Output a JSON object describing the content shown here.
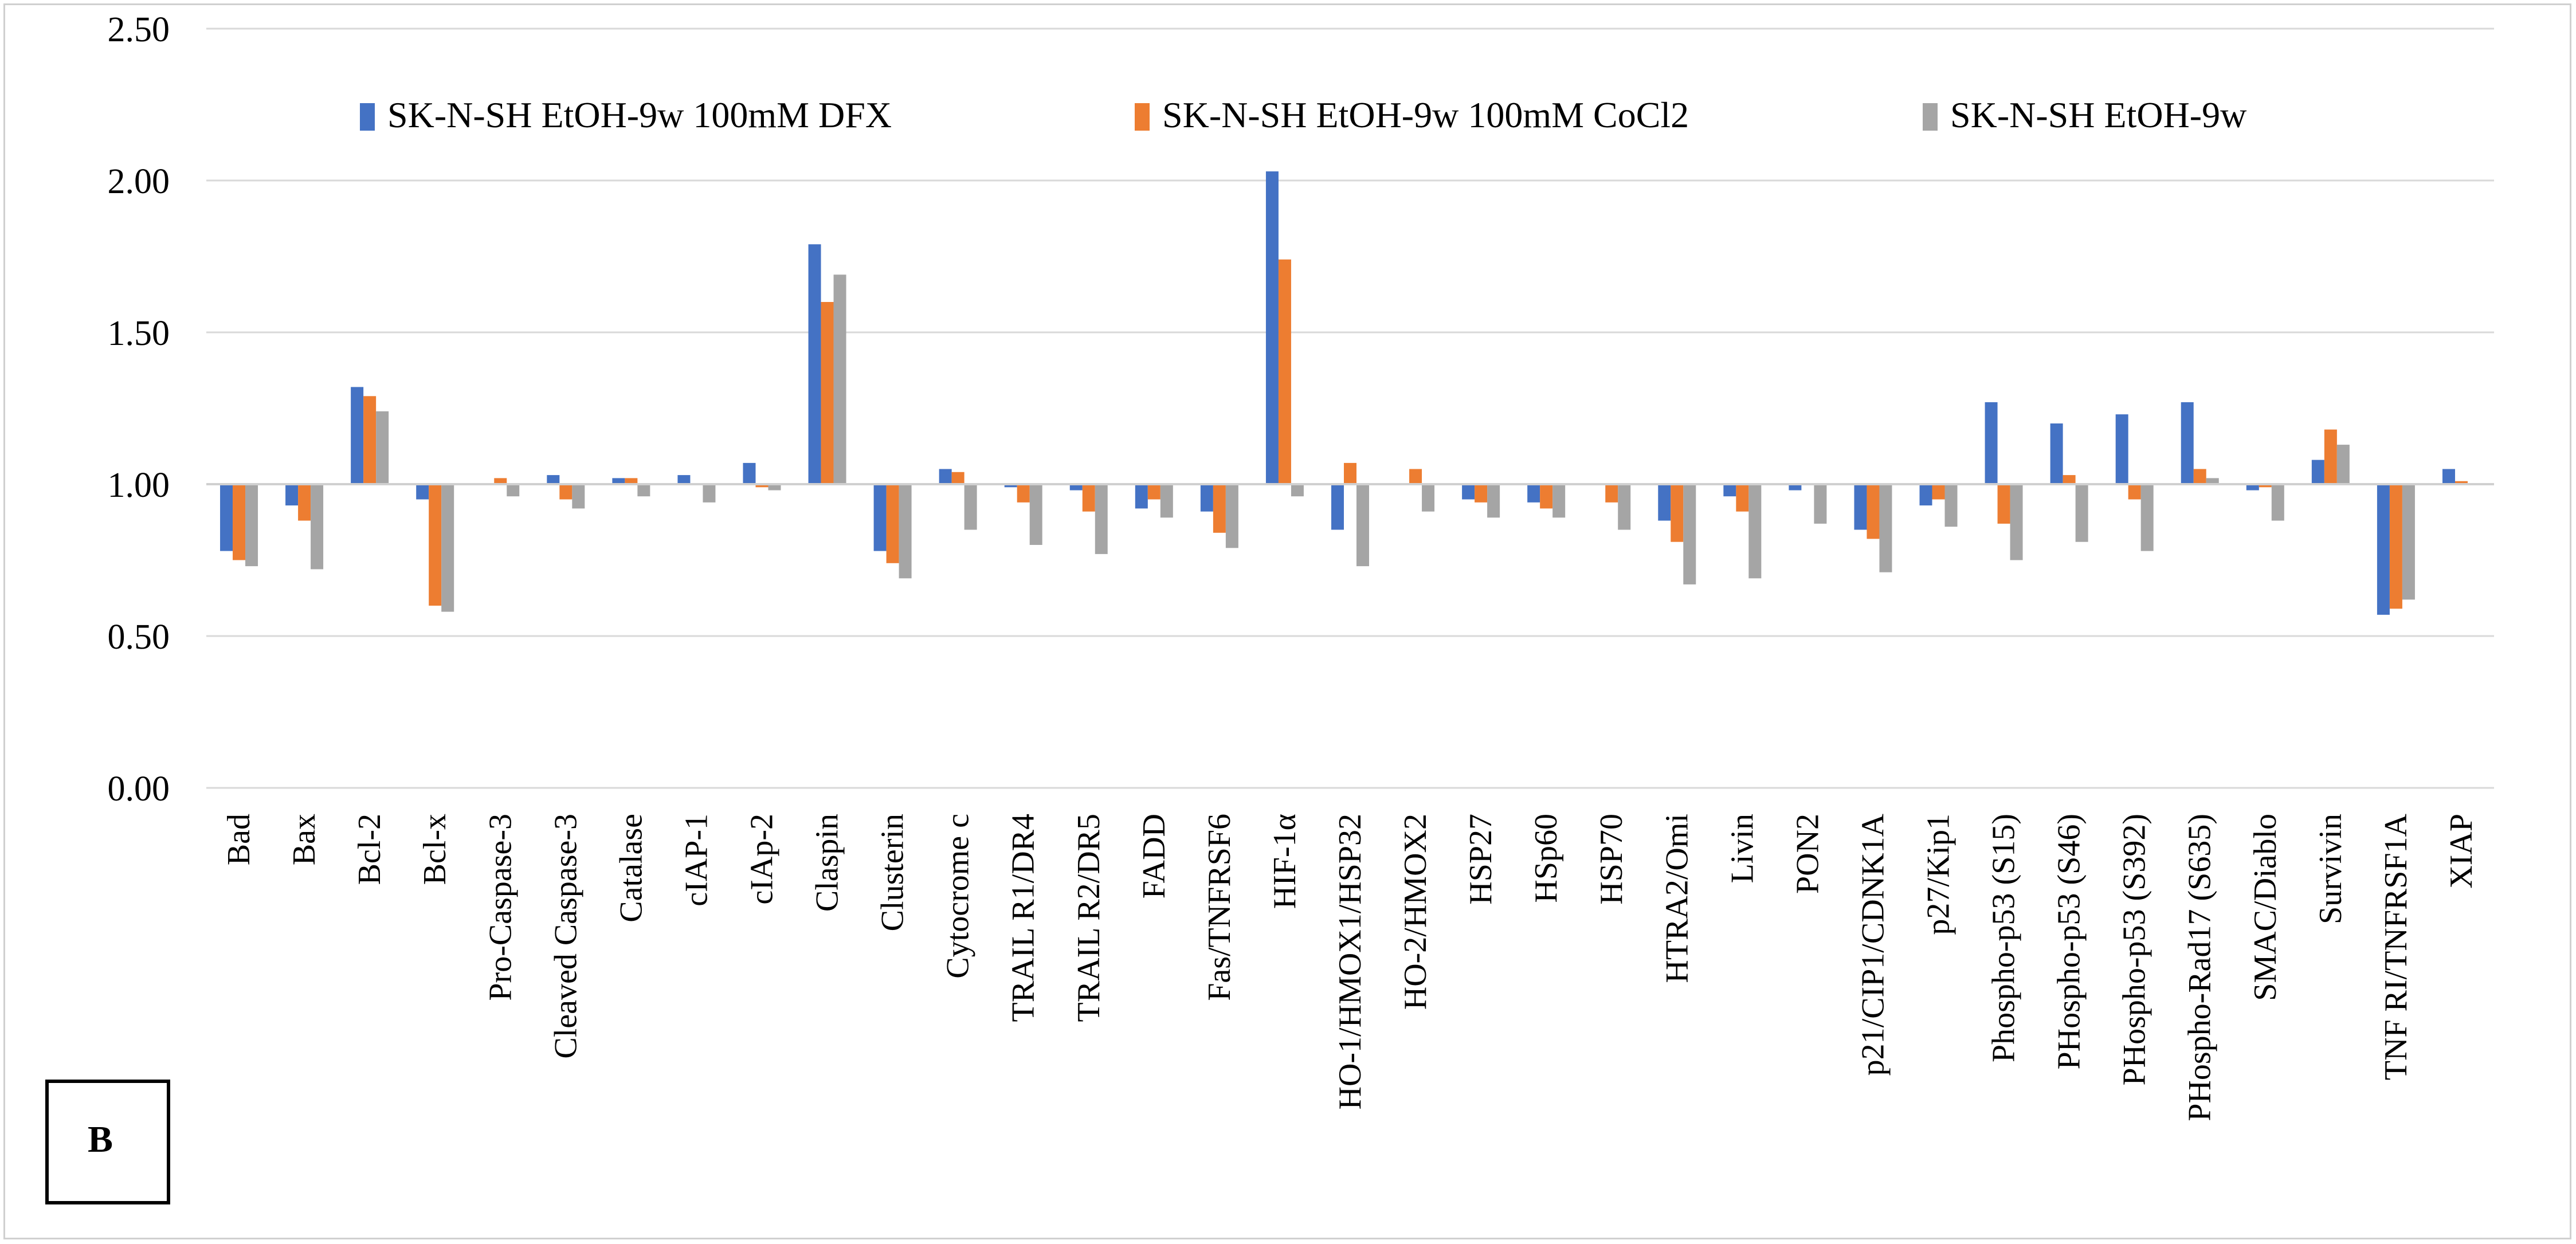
{
  "chart_data": {
    "type": "bar",
    "panel_label": "B",
    "title": "",
    "xlabel": "",
    "ylabel": "",
    "ylim": [
      0,
      2.5
    ],
    "yticks": [
      "0.00",
      "0.50",
      "1.00",
      "1.50",
      "2.00",
      "2.50"
    ],
    "baseline": 1.0,
    "grid": true,
    "legend_position": "top",
    "colors": [
      "#4472C4",
      "#ED7D31",
      "#A5A5A5"
    ],
    "categories": [
      "Bad",
      "Bax",
      "Bcl-2",
      "Bcl-x",
      "Pro-Caspase-3",
      "Cleaved Caspase-3",
      "Catalase",
      "cIAP-1",
      "cIAp-2",
      "Claspin",
      "Clusterin",
      "Cytocrome c",
      "TRAIL R1/DR4",
      "TRAIL R2/DR5",
      "FADD",
      "Fas/TNFRSF6",
      "HIF-1α",
      "HO-1/HMOX1/HSP32",
      "HO-2/HMOX2",
      "HSP27",
      "HSp60",
      "HSP70",
      "HTRA2/Omi",
      "Livin",
      "PON2",
      "p21/CIP1/CDNK1A",
      "p27/Kip1",
      "Phospho-p53 (S15)",
      "PHospho-p53 (S46)",
      "PHospho-p53 (S392)",
      "PHospho-Rad17 (S635)",
      "SMAC/Diablo",
      "Survivin",
      "TNF RI/TNFRSF1A",
      "XIAP"
    ],
    "series": [
      {
        "name": "SK-N-SH EtOH-9w 100mM DFX",
        "values": [
          0.78,
          0.93,
          1.32,
          0.95,
          1.0,
          1.03,
          1.02,
          1.03,
          1.07,
          1.79,
          0.78,
          1.05,
          0.99,
          0.98,
          0.92,
          0.91,
          2.03,
          0.85,
          1.0,
          0.95,
          0.94,
          1.0,
          0.88,
          0.96,
          0.98,
          0.85,
          0.93,
          1.27,
          1.2,
          1.23,
          1.27,
          0.98,
          1.08,
          0.57,
          1.05
        ]
      },
      {
        "name": "SK-N-SH EtOH-9w 100mM CoCl2",
        "values": [
          0.75,
          0.88,
          1.29,
          0.6,
          1.02,
          0.95,
          1.02,
          1.0,
          0.99,
          1.6,
          0.74,
          1.04,
          0.94,
          0.91,
          0.95,
          0.84,
          1.74,
          1.07,
          1.05,
          0.94,
          0.92,
          0.94,
          0.81,
          0.91,
          1.0,
          0.82,
          0.95,
          0.87,
          1.03,
          0.95,
          1.05,
          0.99,
          1.18,
          0.59,
          1.01
        ]
      },
      {
        "name": "SK-N-SH EtOH-9w",
        "values": [
          0.73,
          0.72,
          1.24,
          0.58,
          0.96,
          0.92,
          0.96,
          0.94,
          0.98,
          1.69,
          0.69,
          0.85,
          0.8,
          0.77,
          0.89,
          0.79,
          0.96,
          0.73,
          0.91,
          0.89,
          0.89,
          0.85,
          0.67,
          0.69,
          0.87,
          0.71,
          0.86,
          0.75,
          0.81,
          0.78,
          1.02,
          0.88,
          1.13,
          0.62,
          1.0
        ]
      }
    ]
  }
}
